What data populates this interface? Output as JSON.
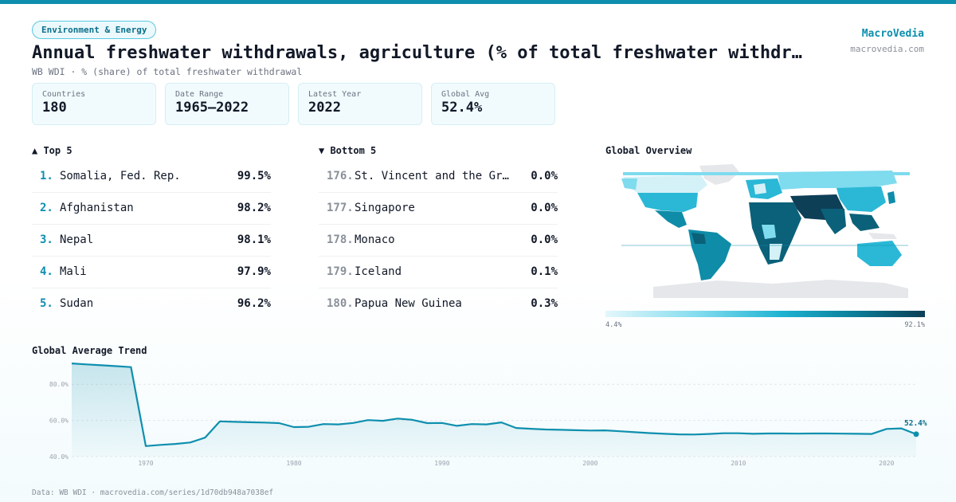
{
  "header": {
    "category": "Environment & Energy",
    "title": "Annual freshwater withdrawals, agriculture (% of total freshwater withdrawal)",
    "subtitle": "WB WDI · % (share) of total freshwater withdrawal",
    "brand_name": "MacroVedia",
    "brand_url": "macrovedia.com"
  },
  "stats": [
    {
      "label": "Countries",
      "value": "180"
    },
    {
      "label": "Date Range",
      "value": "1965–2022"
    },
    {
      "label": "Latest Year",
      "value": "2022"
    },
    {
      "label": "Global Avg",
      "value": "52.4%"
    }
  ],
  "top5": {
    "heading": "▲ Top 5",
    "items": [
      {
        "rank": "1.",
        "name": "Somalia, Fed. Rep.",
        "value": "99.5%"
      },
      {
        "rank": "2.",
        "name": "Afghanistan",
        "value": "98.2%"
      },
      {
        "rank": "3.",
        "name": "Nepal",
        "value": "98.1%"
      },
      {
        "rank": "4.",
        "name": "Mali",
        "value": "97.9%"
      },
      {
        "rank": "5.",
        "name": "Sudan",
        "value": "96.2%"
      }
    ]
  },
  "bottom5": {
    "heading": "▼ Bottom 5",
    "items": [
      {
        "rank": "176.",
        "name": "St. Vincent and the Grenadines",
        "value": "0.0%"
      },
      {
        "rank": "177.",
        "name": "Singapore",
        "value": "0.0%"
      },
      {
        "rank": "178.",
        "name": "Monaco",
        "value": "0.0%"
      },
      {
        "rank": "179.",
        "name": "Iceland",
        "value": "0.1%"
      },
      {
        "rank": "180.",
        "name": "Papua New Guinea",
        "value": "0.3%"
      }
    ]
  },
  "map": {
    "heading": "Global Overview",
    "legend_min": "4.4%",
    "legend_max": "92.1%",
    "colors": [
      "#d4f1f7",
      "#7fdbee",
      "#2ab8d6",
      "#0f8ca8",
      "#0b6179",
      "#0d3f57"
    ]
  },
  "trend": {
    "heading": "Global Average Trend",
    "end_label": "52.4%",
    "line_color": "#0e8fae"
  },
  "chart_data": {
    "type": "area",
    "x": [
      1965,
      1966,
      1967,
      1968,
      1969,
      1970,
      1971,
      1972,
      1973,
      1974,
      1975,
      1976,
      1977,
      1978,
      1979,
      1980,
      1981,
      1982,
      1983,
      1984,
      1985,
      1986,
      1987,
      1988,
      1989,
      1990,
      1991,
      1992,
      1993,
      1994,
      1995,
      1996,
      1997,
      1998,
      1999,
      2000,
      2001,
      2002,
      2003,
      2004,
      2005,
      2006,
      2007,
      2008,
      2009,
      2010,
      2011,
      2012,
      2013,
      2014,
      2015,
      2016,
      2017,
      2018,
      2019,
      2020,
      2021,
      2022
    ],
    "y": [
      91.5,
      91.0,
      90.5,
      90.0,
      89.5,
      45.8,
      46.5,
      47.0,
      47.8,
      50.5,
      59.5,
      59.2,
      59.0,
      58.8,
      58.5,
      56.3,
      56.5,
      58.0,
      57.8,
      58.6,
      60.2,
      59.8,
      61.0,
      60.3,
      58.5,
      58.6,
      57.0,
      58.0,
      57.8,
      58.9,
      55.8,
      55.4,
      55.0,
      54.8,
      54.6,
      54.4,
      54.5,
      54.0,
      53.5,
      53.0,
      52.6,
      52.3,
      52.2,
      52.5,
      52.9,
      52.9,
      52.6,
      52.8,
      52.8,
      52.7,
      52.8,
      52.8,
      52.7,
      52.6,
      52.5,
      55.3,
      55.6,
      52.4
    ],
    "title": "Global Average Trend",
    "xlabel": "",
    "ylabel": "",
    "ylim": [
      40,
      92
    ],
    "yticks": [
      "40.0%",
      "60.0%",
      "80.0%"
    ],
    "xticks": [
      "1970",
      "1980",
      "1990",
      "2000",
      "2010",
      "2020"
    ],
    "grid": true
  },
  "footer": "Data: WB WDI · macrovedia.com/series/1d70db948a7038ef"
}
